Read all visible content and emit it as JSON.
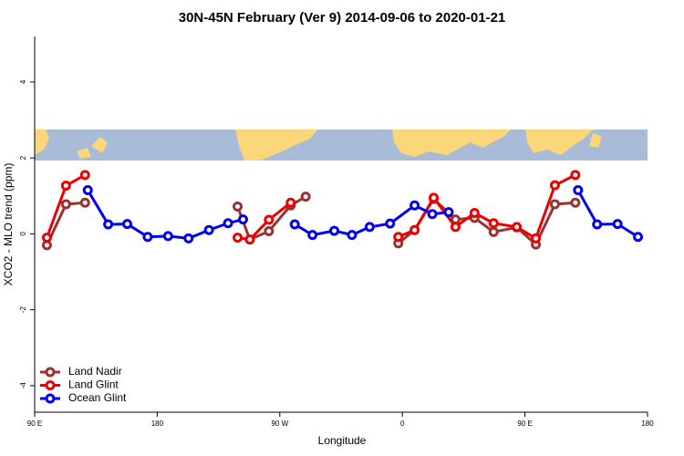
{
  "chart_data": {
    "type": "line",
    "title": "30N-45N February (Ver 9)   2014-09-06 to 2020-01-21",
    "x_label": "Longitude",
    "y_label": "XCO2 - MLO trend (ppm)",
    "xlim": [
      90,
      540
    ],
    "ylim": [
      -4.7,
      5.2
    ],
    "xticks": [
      {
        "value": 90,
        "label": "90 E"
      },
      180,
      {
        "value": 270,
        "label": "90 W"
      },
      {
        "value": 360,
        "label": "0"
      },
      {
        "value": 450,
        "label": "90 E"
      },
      {
        "value": 540,
        "label": "180"
      }
    ],
    "yticks": [
      -4,
      -2,
      0,
      2,
      4
    ],
    "legend": "bottom-left",
    "series": [
      {
        "name": "Land Nadir",
        "color": "#993333",
        "x": [
          99,
          113,
          127,
          null,
          239,
          248,
          262,
          278,
          289,
          null,
          357,
          369,
          383,
          399,
          413,
          427,
          444,
          458,
          472,
          487
        ],
        "values": [
          -0.3,
          0.78,
          0.82,
          null,
          0.72,
          -0.15,
          0.07,
          0.75,
          0.98,
          null,
          -0.25,
          0.1,
          0.92,
          0.38,
          0.42,
          0.05,
          0.17,
          -0.28,
          0.78,
          0.82
        ]
      },
      {
        "name": "Land Glint",
        "color": "#ee0000",
        "x": [
          99,
          113,
          127,
          null,
          239,
          248,
          262,
          278,
          null,
          357,
          369,
          383,
          399,
          413,
          427,
          444,
          458,
          472,
          487
        ],
        "values": [
          -0.1,
          1.27,
          1.55,
          null,
          -0.1,
          -0.15,
          0.37,
          0.82,
          null,
          -0.08,
          0.1,
          0.95,
          0.18,
          0.55,
          0.28,
          0.18,
          -0.12,
          1.28,
          1.55
        ]
      },
      {
        "name": "Ocean Glint",
        "color": "#0000ee",
        "x": [
          129,
          144,
          158,
          173,
          188,
          203,
          218,
          232,
          243,
          null,
          281,
          294,
          310,
          323,
          336,
          351,
          369,
          382,
          394,
          null,
          489,
          503,
          518,
          533
        ],
        "values": [
          1.15,
          0.25,
          0.26,
          -0.08,
          -0.06,
          -0.12,
          0.1,
          0.28,
          0.38,
          null,
          0.25,
          -0.03,
          0.08,
          -0.03,
          0.18,
          0.27,
          0.75,
          0.52,
          0.57,
          null,
          1.15,
          0.25,
          0.26,
          -0.08
        ]
      }
    ]
  }
}
